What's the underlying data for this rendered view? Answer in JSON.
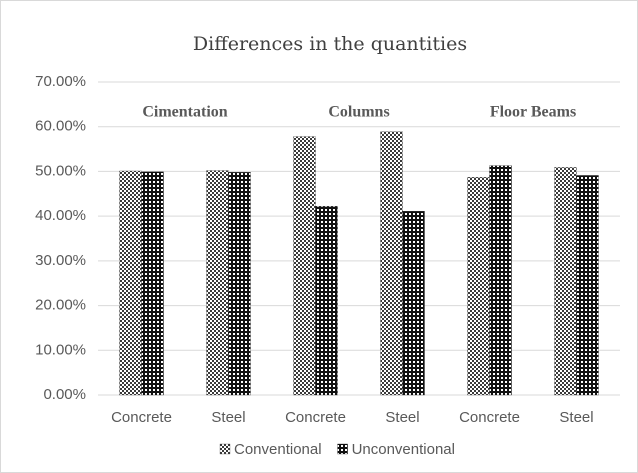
{
  "chart_data": {
    "type": "bar",
    "title": "Differences in the quantities",
    "categories": [
      "Concrete",
      "Steel",
      "Concrete",
      "Steel",
      "Concrete",
      "Steel"
    ],
    "series": [
      {
        "name": "Conventional",
        "color": "#3a3a3a",
        "values": [
          50.1,
          50.2,
          57.8,
          58.9,
          48.7,
          50.9
        ]
      },
      {
        "name": "Unconventional",
        "color": "#111111",
        "values": [
          49.9,
          49.8,
          42.2,
          41.1,
          51.3,
          49.1
        ]
      }
    ],
    "annotations": [
      "Cimentation",
      "Columns",
      "Floor Beams"
    ],
    "ylim": [
      0,
      70
    ],
    "yticks": [
      {
        "value": 0,
        "label": "0.00%"
      },
      {
        "value": 10,
        "label": "10.00%"
      },
      {
        "value": 20,
        "label": "20.00%"
      },
      {
        "value": 30,
        "label": "30.00%"
      },
      {
        "value": 40,
        "label": "40.00%"
      },
      {
        "value": 50,
        "label": "50.00%"
      },
      {
        "value": 60,
        "label": "60.00%"
      },
      {
        "value": 70,
        "label": "70.00%"
      }
    ],
    "grid": true,
    "legend": "bottom"
  }
}
